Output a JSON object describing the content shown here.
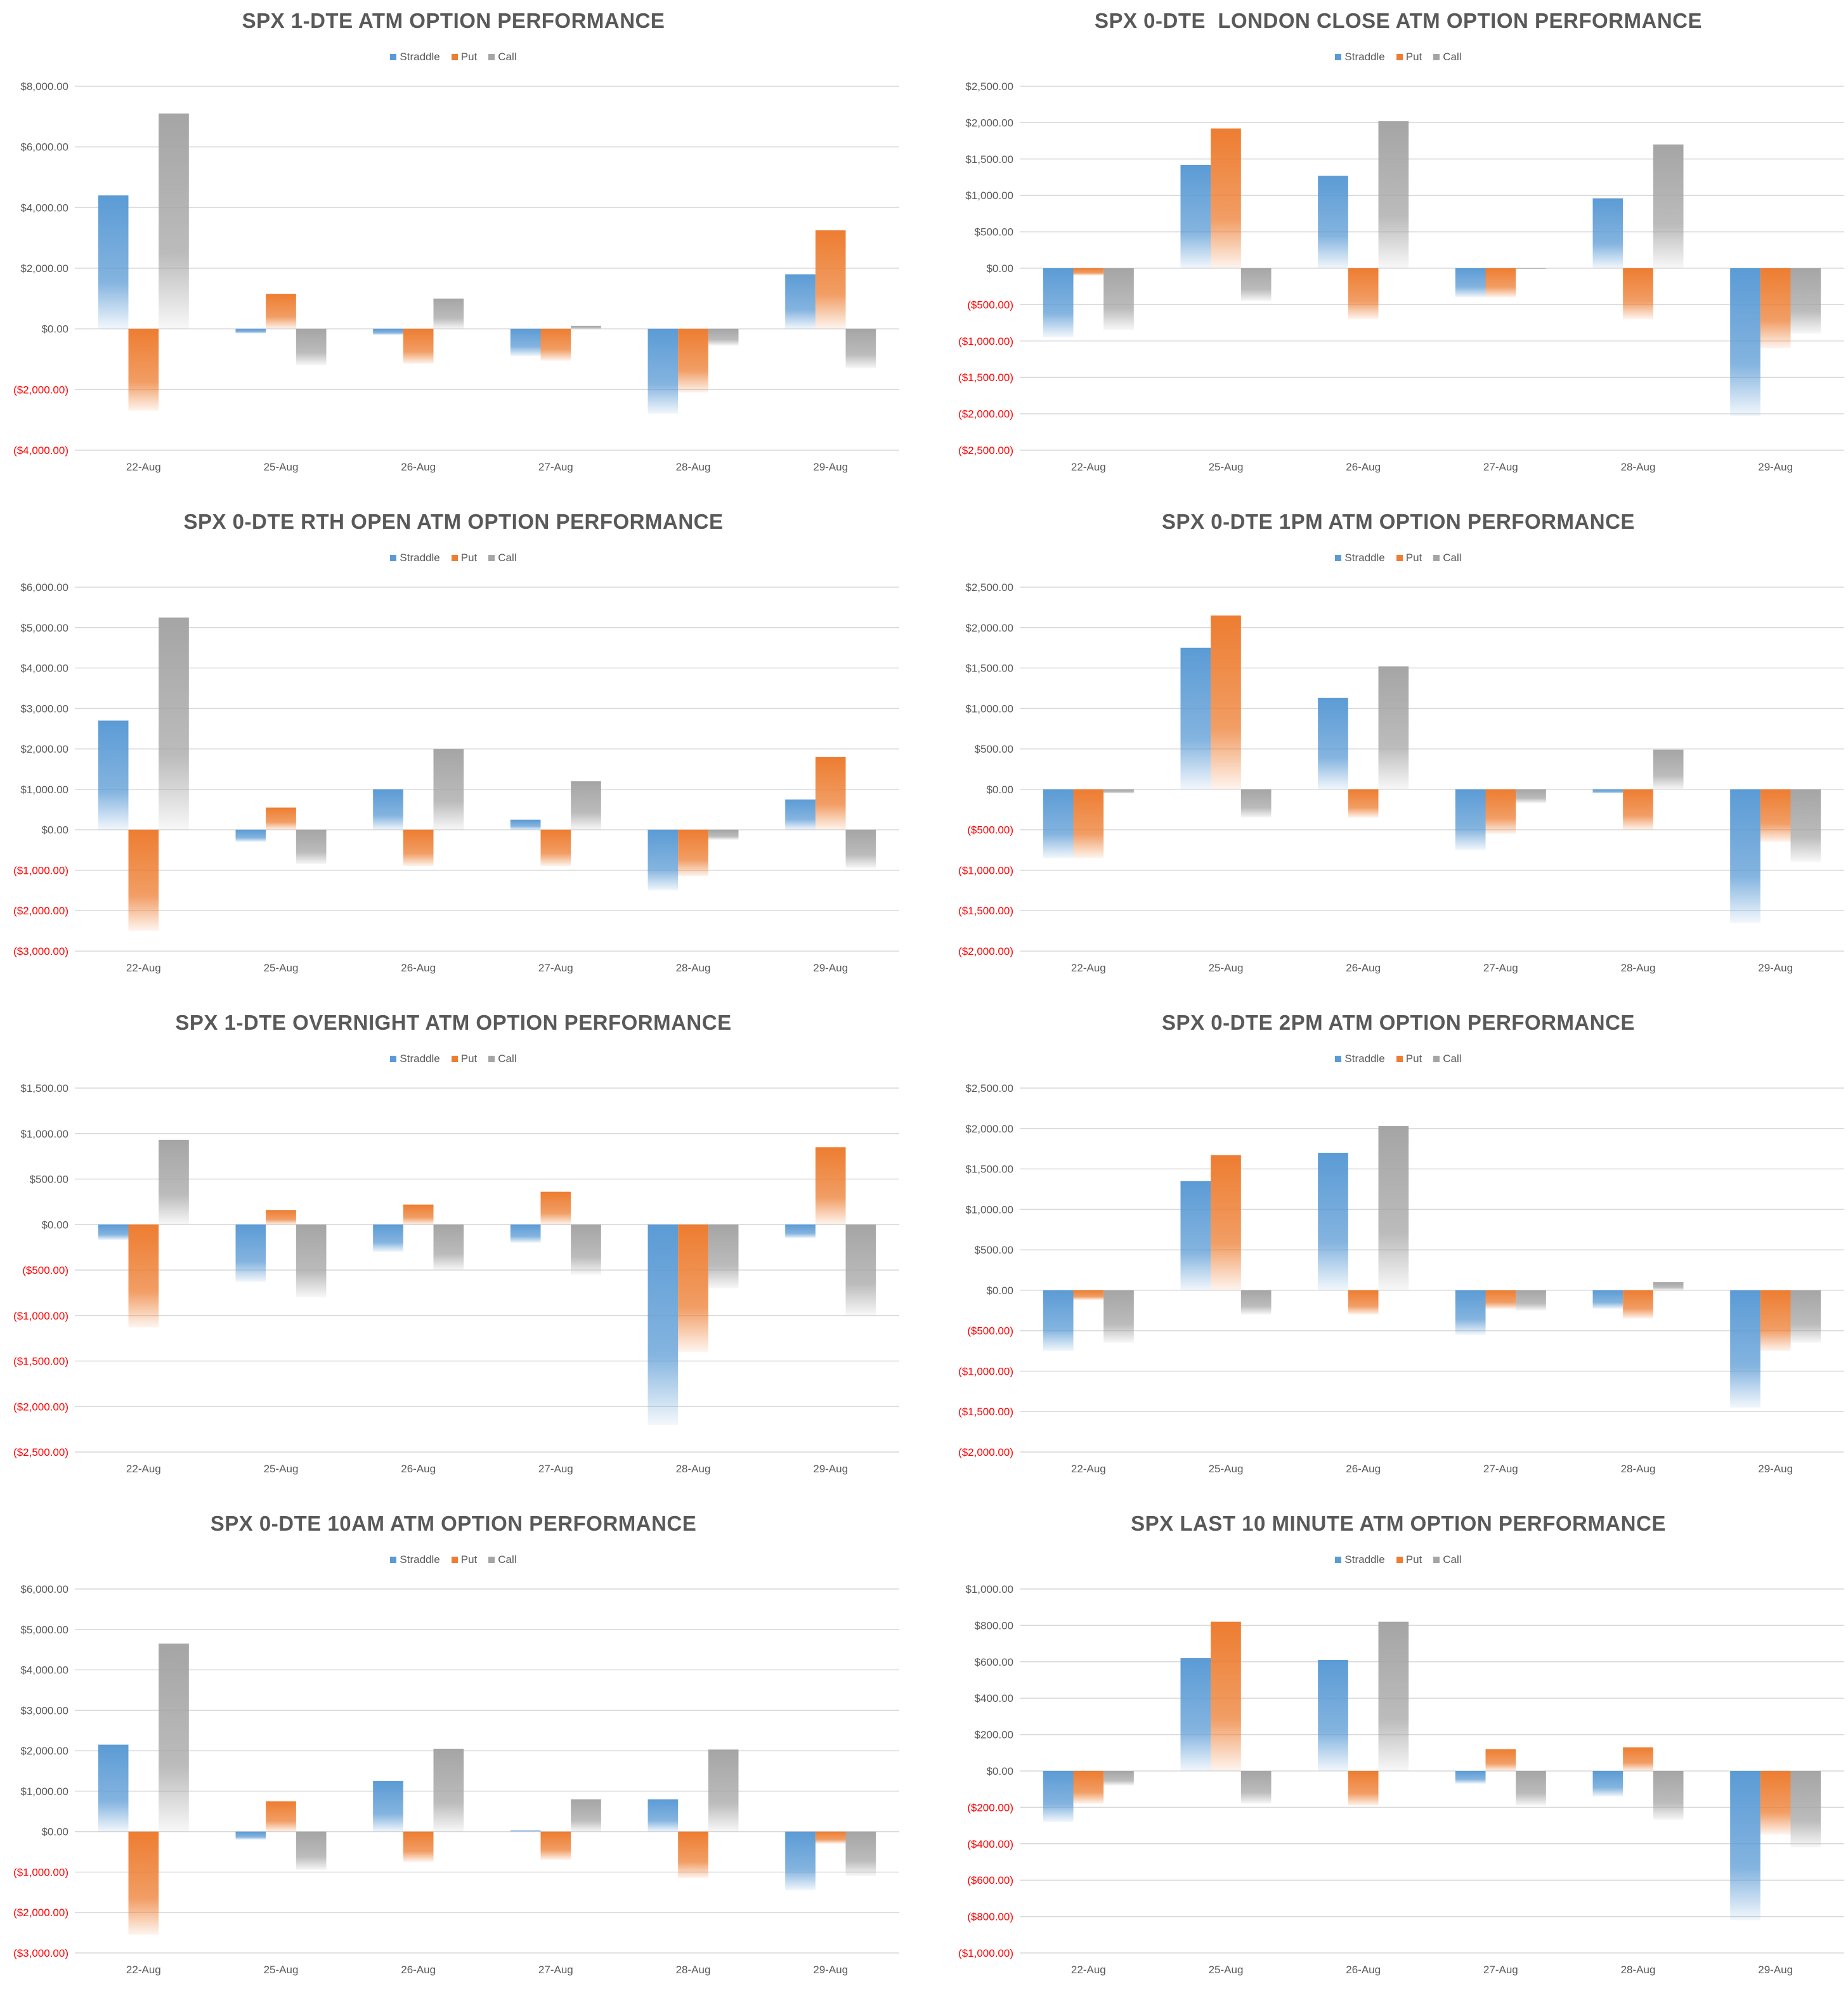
{
  "colors": {
    "straddle": "#5B9BD5",
    "put": "#ED7D31",
    "call": "#A5A5A5",
    "negative_label": "#FF0000",
    "grid": "#D9D9D9",
    "axis_text": "#595959"
  },
  "legend": [
    "Straddle",
    "Put",
    "Call"
  ],
  "chart_data": [
    {
      "type": "bar",
      "title": "SPX 1-DTE ATM OPTION PERFORMANCE",
      "categories": [
        "22-Aug",
        "25-Aug",
        "26-Aug",
        "27-Aug",
        "28-Aug",
        "29-Aug"
      ],
      "yticks": [
        "$8,000.00",
        "$6,000.00",
        "$4,000.00",
        "$2,000.00",
        "$0.00",
        "($2,000.00)",
        "($4,000.00)"
      ],
      "ylim": [
        -4000,
        8000
      ],
      "series": [
        {
          "name": "Straddle",
          "values": [
            4400,
            -150,
            -200,
            -900,
            -2800,
            1800
          ]
        },
        {
          "name": "Put",
          "values": [
            -2700,
            1150,
            -1150,
            -1050,
            -2100,
            3250
          ]
        },
        {
          "name": "Call",
          "values": [
            7100,
            -1200,
            1000,
            100,
            -550,
            -1300
          ]
        }
      ]
    },
    {
      "type": "bar",
      "title": "SPX 0-DTE  LONDON CLOSE ATM OPTION PERFORMANCE",
      "categories": [
        "22-Aug",
        "25-Aug",
        "26-Aug",
        "27-Aug",
        "28-Aug",
        "29-Aug"
      ],
      "yticks": [
        "$2,500.00",
        "$2,000.00",
        "$1,500.00",
        "$1,000.00",
        "$500.00",
        "$0.00",
        "($500.00)",
        "($1,000.00)",
        "($1,500.00)",
        "($2,000.00)",
        "($2,500.00)"
      ],
      "ylim": [
        -2500,
        2500
      ],
      "series": [
        {
          "name": "Straddle",
          "values": [
            -950,
            1420,
            1270,
            -400,
            960,
            -2030
          ]
        },
        {
          "name": "Put",
          "values": [
            -100,
            1920,
            -700,
            -400,
            -700,
            -1100
          ]
        },
        {
          "name": "Call",
          "values": [
            -850,
            -450,
            2020,
            0,
            1700,
            -900
          ]
        }
      ]
    },
    {
      "type": "bar",
      "title": "SPX 0-DTE RTH OPEN ATM OPTION PERFORMANCE",
      "categories": [
        "22-Aug",
        "25-Aug",
        "26-Aug",
        "27-Aug",
        "28-Aug",
        "29-Aug"
      ],
      "yticks": [
        "$6,000.00",
        "$5,000.00",
        "$4,000.00",
        "$3,000.00",
        "$2,000.00",
        "$1,000.00",
        "$0.00",
        "($1,000.00)",
        "($2,000.00)",
        "($3,000.00)"
      ],
      "ylim": [
        -3000,
        6000
      ],
      "series": [
        {
          "name": "Straddle",
          "values": [
            2700,
            -300,
            1000,
            250,
            -1500,
            750
          ]
        },
        {
          "name": "Put",
          "values": [
            -2500,
            550,
            -900,
            -900,
            -1150,
            1800
          ]
        },
        {
          "name": "Call",
          "values": [
            5250,
            -850,
            2000,
            1200,
            -250,
            -950
          ]
        }
      ]
    },
    {
      "type": "bar",
      "title": "SPX 0-DTE 1PM ATM OPTION PERFORMANCE",
      "categories": [
        "22-Aug",
        "25-Aug",
        "26-Aug",
        "27-Aug",
        "28-Aug",
        "29-Aug"
      ],
      "yticks": [
        "$2,500.00",
        "$2,000.00",
        "$1,500.00",
        "$1,000.00",
        "$500.00",
        "$0.00",
        "($500.00)",
        "($1,000.00)",
        "($1,500.00)",
        "($2,000.00)"
      ],
      "ylim": [
        -2000,
        2500
      ],
      "series": [
        {
          "name": "Straddle",
          "values": [
            -850,
            1750,
            1130,
            -750,
            -50,
            -1650
          ]
        },
        {
          "name": "Put",
          "values": [
            -850,
            2150,
            -350,
            -550,
            -500,
            -650
          ]
        },
        {
          "name": "Call",
          "values": [
            -50,
            -350,
            1520,
            -170,
            490,
            -900
          ]
        }
      ]
    },
    {
      "type": "bar",
      "title": "SPX 1-DTE OVERNIGHT ATM OPTION PERFORMANCE",
      "categories": [
        "22-Aug",
        "25-Aug",
        "26-Aug",
        "27-Aug",
        "28-Aug",
        "29-Aug"
      ],
      "yticks": [
        "$1,500.00",
        "$1,000.00",
        "$500.00",
        "$0.00",
        "($500.00)",
        "($1,000.00)",
        "($1,500.00)",
        "($2,000.00)",
        "($2,500.00)"
      ],
      "ylim": [
        -2500,
        1500
      ],
      "series": [
        {
          "name": "Straddle",
          "values": [
            -170,
            -630,
            -300,
            -200,
            -2200,
            -150
          ]
        },
        {
          "name": "Put",
          "values": [
            -1130,
            160,
            220,
            360,
            -1400,
            850
          ]
        },
        {
          "name": "Call",
          "values": [
            930,
            -800,
            -500,
            -550,
            -700,
            -1000
          ]
        }
      ]
    },
    {
      "type": "bar",
      "title": "SPX 0-DTE 2PM ATM OPTION PERFORMANCE",
      "categories": [
        "22-Aug",
        "25-Aug",
        "26-Aug",
        "27-Aug",
        "28-Aug",
        "29-Aug"
      ],
      "yticks": [
        "$2,500.00",
        "$2,000.00",
        "$1,500.00",
        "$1,000.00",
        "$500.00",
        "$0.00",
        "($500.00)",
        "($1,000.00)",
        "($1,500.00)",
        "($2,000.00)"
      ],
      "ylim": [
        -2000,
        2500
      ],
      "series": [
        {
          "name": "Straddle",
          "values": [
            -750,
            1350,
            1700,
            -550,
            -230,
            -1450
          ]
        },
        {
          "name": "Put",
          "values": [
            -120,
            1670,
            -300,
            -230,
            -350,
            -750
          ]
        },
        {
          "name": "Call",
          "values": [
            -650,
            -300,
            2030,
            -250,
            100,
            -650
          ]
        }
      ]
    },
    {
      "type": "bar",
      "title": "SPX 0-DTE 10AM ATM OPTION PERFORMANCE",
      "categories": [
        "22-Aug",
        "25-Aug",
        "26-Aug",
        "27-Aug",
        "28-Aug",
        "29-Aug"
      ],
      "yticks": [
        "$6,000.00",
        "$5,000.00",
        "$4,000.00",
        "$3,000.00",
        "$2,000.00",
        "$1,000.00",
        "$0.00",
        "($1,000.00)",
        "($2,000.00)",
        "($3,000.00)"
      ],
      "ylim": [
        -3000,
        6000
      ],
      "series": [
        {
          "name": "Straddle",
          "values": [
            2150,
            -200,
            1250,
            30,
            800,
            -1450
          ]
        },
        {
          "name": "Put",
          "values": [
            -2550,
            750,
            -750,
            -700,
            -1150,
            -300
          ]
        },
        {
          "name": "Call",
          "values": [
            4650,
            -950,
            2050,
            800,
            2030,
            -1100
          ]
        }
      ]
    },
    {
      "type": "bar",
      "title": "SPX LAST 10 MINUTE ATM OPTION PERFORMANCE",
      "categories": [
        "22-Aug",
        "25-Aug",
        "26-Aug",
        "27-Aug",
        "28-Aug",
        "29-Aug"
      ],
      "yticks": [
        "$1,000.00",
        "$800.00",
        "$600.00",
        "$400.00",
        "$200.00",
        "$0.00",
        "($200.00)",
        "($400.00)",
        "($600.00)",
        "($800.00)",
        "($1,000.00)"
      ],
      "ylim": [
        -1000,
        1000
      ],
      "series": [
        {
          "name": "Straddle",
          "values": [
            -280,
            620,
            610,
            -70,
            -140,
            -820
          ]
        },
        {
          "name": "Put",
          "values": [
            -180,
            820,
            -190,
            120,
            130,
            -350
          ]
        },
        {
          "name": "Call",
          "values": [
            -80,
            -180,
            820,
            -190,
            -270,
            -420
          ]
        }
      ]
    }
  ]
}
